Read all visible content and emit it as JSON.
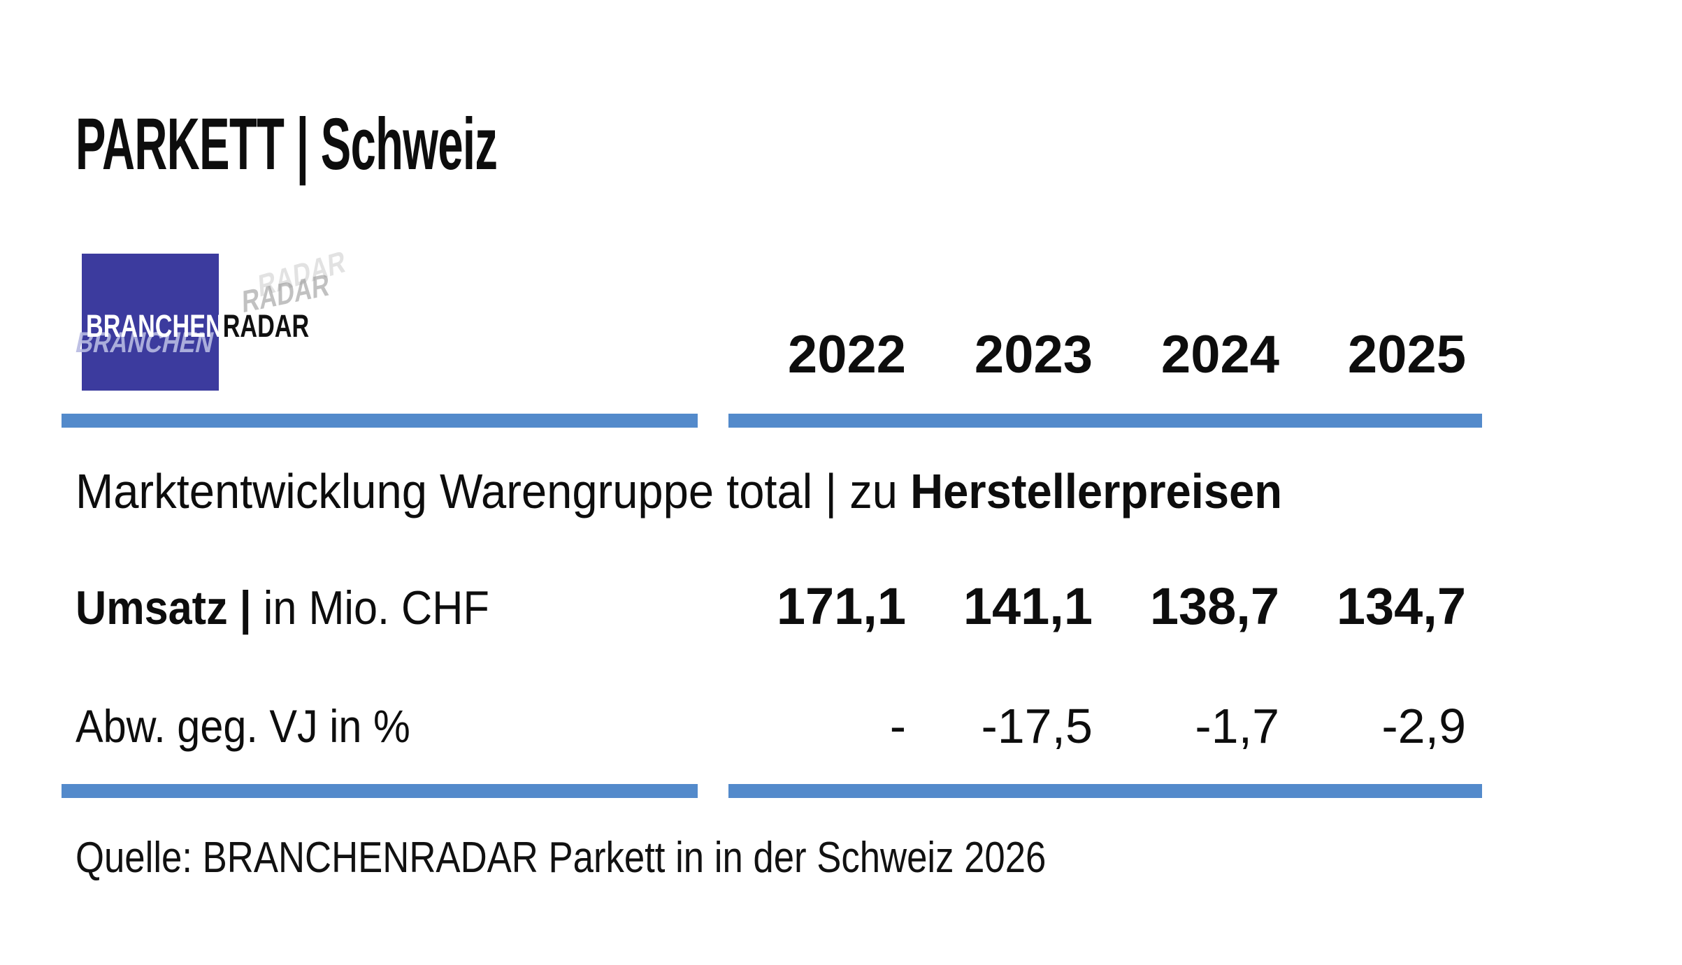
{
  "page": {
    "title": "PARKETT | Schweiz"
  },
  "colors": {
    "divider_blue": "#538acb",
    "logo_blue": "#3c3b9e",
    "text": "#0d0d0d"
  },
  "logo": {
    "brand_part1": "BRANCHEN",
    "brand_part2": "RADAR"
  },
  "table": {
    "years": [
      "2022",
      "2023",
      "2024",
      "2025"
    ],
    "section_title_regular": "Marktentwicklung Warengruppe total | zu ",
    "section_title_bold": "Herstellerpreisen",
    "rows": [
      {
        "label_bold": "Umsatz | ",
        "label_regular": "in Mio. CHF",
        "values": [
          "171,1",
          "141,1",
          "138,7",
          "134,7"
        ]
      },
      {
        "label_bold": "",
        "label_regular": "Abw. geg. VJ in %",
        "values": [
          "-",
          "-17,5",
          "-1,7",
          "-2,9"
        ]
      }
    ]
  },
  "source": "Quelle: BRANCHENRADAR Parkett in in der Schweiz 2026",
  "chart_data": {
    "type": "table",
    "title": "Marktentwicklung Warengruppe total | zu Herstellerpreisen",
    "columns": [
      "2022",
      "2023",
      "2024",
      "2025"
    ],
    "rows": [
      {
        "label": "Umsatz | in Mio. CHF",
        "values": [
          171.1,
          141.1,
          138.7,
          134.7
        ]
      },
      {
        "label": "Abw. geg. VJ in %",
        "values": [
          null,
          -17.5,
          -1.7,
          -2.9
        ]
      }
    ]
  }
}
